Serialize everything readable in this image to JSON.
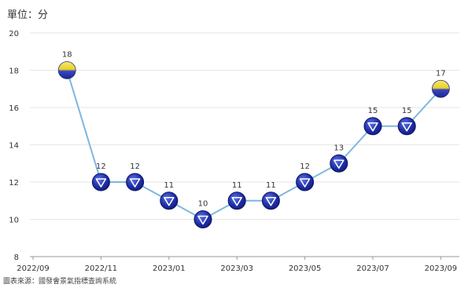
{
  "chart_data": {
    "type": "line",
    "unit_label": "單位：分",
    "source": "圖表來源：國發會景氣指標查詢系統",
    "x_ticks": [
      "2022/09",
      "2022/11",
      "2023/01",
      "2023/03",
      "2023/05",
      "2023/07",
      "2023/09"
    ],
    "x": [
      "2022/10",
      "2022/11",
      "2022/12",
      "2023/01",
      "2023/02",
      "2023/03",
      "2023/04",
      "2023/05",
      "2023/06",
      "2023/07",
      "2023/08",
      "2023/09"
    ],
    "values": [
      18,
      12,
      12,
      11,
      10,
      11,
      11,
      12,
      13,
      15,
      15,
      17
    ],
    "signal": [
      "yellow-blue",
      "blue",
      "blue",
      "blue",
      "blue",
      "blue",
      "blue",
      "blue",
      "blue",
      "blue",
      "blue",
      "yellow-blue"
    ],
    "ylim": [
      8,
      20
    ],
    "y_ticks": [
      8,
      10,
      12,
      14,
      16,
      18,
      20
    ],
    "grid": true,
    "colors": {
      "line": "#7fb6e0",
      "blue_signal": "#1f2fa8",
      "yellow_signal": "#e8d22a",
      "grid": "#e6e6e6",
      "axis": "#999999"
    }
  }
}
